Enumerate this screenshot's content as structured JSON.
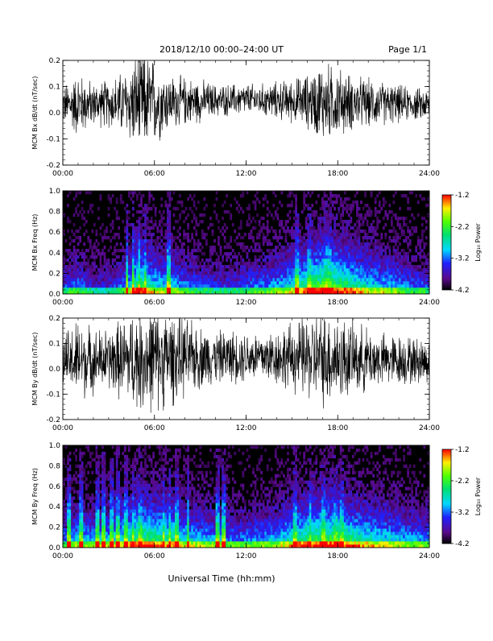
{
  "header": {
    "title": "2018/12/10   00:00–24:00 UT",
    "page": "Page 1/1"
  },
  "footer": {
    "xlabel": "Universal Time (hh:mm)"
  },
  "colorbar": {
    "label": "Log₁₀ Power",
    "ticks": [
      "-1.2",
      "-2.2",
      "-3.2",
      "-4.2"
    ],
    "range": [
      -4.2,
      -1.2
    ],
    "colormap": "rainbow (black-purple-blue-cyan-green-yellow-red)"
  },
  "chart_data": [
    {
      "type": "line",
      "ylabel": "MCM Bx dB/dt (nT/sec)",
      "xlim": [
        0,
        24
      ],
      "ylim": [
        -0.2,
        0.2
      ],
      "x_ticks": [
        "00:00",
        "06:00",
        "12:00",
        "18:00",
        "24:00"
      ],
      "y_ticks": [
        "0.2",
        "0.1",
        "0.0",
        "-0.1",
        "-0.2"
      ],
      "series": [
        {
          "x": [
            0,
            1,
            2,
            3,
            4,
            5,
            6,
            7,
            8,
            9,
            10,
            11,
            12,
            13,
            14,
            15,
            16,
            17,
            18,
            19,
            20,
            21,
            22,
            23,
            24
          ],
          "values": [
            0.07,
            0.12,
            0.08,
            0.09,
            0.12,
            0.2,
            0.16,
            0.1,
            0.09,
            0.08,
            0.06,
            0.06,
            0.06,
            0.06,
            0.07,
            0.08,
            0.1,
            0.15,
            0.13,
            0.1,
            0.09,
            0.08,
            0.07,
            0.06,
            0.06
          ]
        }
      ]
    },
    {
      "type": "heatmap",
      "ylabel": "MCM Bx Freq (Hz)",
      "xlim": [
        0,
        24
      ],
      "ylim": [
        0,
        1.0
      ],
      "x_ticks": [
        "00:00",
        "06:00",
        "12:00",
        "18:00",
        "24:00"
      ],
      "y_ticks": [
        "1.0",
        "0.8",
        "0.6",
        "0.4",
        "0.2",
        "0.0"
      ],
      "hours": [
        0,
        1,
        2,
        3,
        4,
        5,
        6,
        7,
        8,
        9,
        10,
        11,
        12,
        13,
        14,
        15,
        16,
        17,
        18,
        19,
        20,
        21,
        22,
        23,
        24
      ],
      "activity": [
        0.35,
        0.45,
        0.3,
        0.3,
        0.45,
        0.8,
        0.6,
        0.55,
        0.45,
        0.4,
        0.35,
        0.35,
        0.4,
        0.45,
        0.5,
        0.6,
        0.75,
        0.85,
        0.8,
        0.7,
        0.6,
        0.55,
        0.5,
        0.4,
        0.4
      ],
      "bursts": [
        4.2,
        4.6,
        5.0,
        5.4,
        6.9,
        15.3,
        16.1,
        17.2,
        17.5
      ]
    },
    {
      "type": "line",
      "ylabel": "MCM By dB/dt (nT/sec)",
      "xlim": [
        0,
        24
      ],
      "ylim": [
        -0.2,
        0.2
      ],
      "x_ticks": [
        "00:00",
        "06:00",
        "12:00",
        "18:00",
        "24:00"
      ],
      "y_ticks": [
        "0.2",
        "0.1",
        "0.0",
        "-0.1",
        "-0.2"
      ],
      "series": [
        {
          "x": [
            0,
            1,
            2,
            3,
            4,
            5,
            6,
            7,
            8,
            9,
            10,
            11,
            12,
            13,
            14,
            15,
            16,
            17,
            18,
            19,
            20,
            21,
            22,
            23,
            24
          ],
          "values": [
            0.1,
            0.16,
            0.12,
            0.12,
            0.16,
            0.2,
            0.2,
            0.18,
            0.15,
            0.12,
            0.1,
            0.1,
            0.1,
            0.1,
            0.11,
            0.13,
            0.16,
            0.18,
            0.17,
            0.14,
            0.12,
            0.1,
            0.1,
            0.09,
            0.09
          ]
        }
      ]
    },
    {
      "type": "heatmap",
      "ylabel": "MCM By Freq (Hz)",
      "xlim": [
        0,
        24
      ],
      "ylim": [
        0,
        1.0
      ],
      "x_ticks": [
        "00:00",
        "06:00",
        "12:00",
        "18:00",
        "24:00"
      ],
      "y_ticks": [
        "1.0",
        "0.8",
        "0.6",
        "0.4",
        "0.2",
        "0.0"
      ],
      "hours": [
        0,
        1,
        2,
        3,
        4,
        5,
        6,
        7,
        8,
        9,
        10,
        11,
        12,
        13,
        14,
        15,
        16,
        17,
        18,
        19,
        20,
        21,
        22,
        23,
        24
      ],
      "activity": [
        0.45,
        0.55,
        0.5,
        0.55,
        0.65,
        0.8,
        0.75,
        0.7,
        0.6,
        0.55,
        0.5,
        0.45,
        0.45,
        0.5,
        0.55,
        0.65,
        0.75,
        0.8,
        0.8,
        0.7,
        0.65,
        0.6,
        0.55,
        0.5,
        0.5
      ],
      "bursts": [
        0.4,
        1.2,
        2.3,
        2.7,
        3.2,
        3.6,
        4.1,
        4.6,
        5.1,
        6.6,
        7.0,
        7.5,
        8.2,
        10.1,
        10.5,
        15.2,
        16.2,
        17.1,
        17.9,
        18.3
      ]
    }
  ]
}
